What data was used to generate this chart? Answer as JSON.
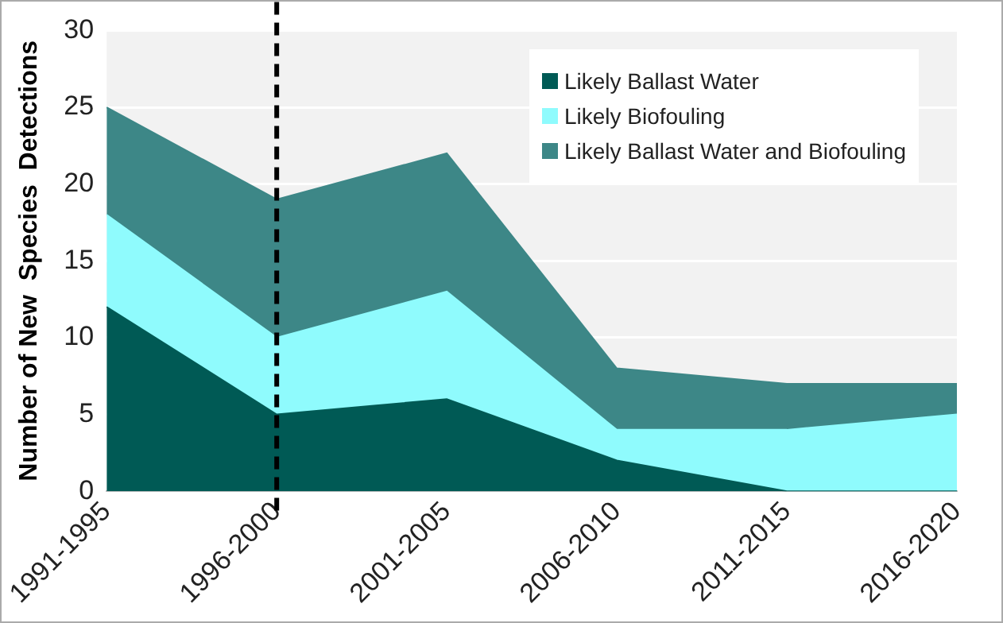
{
  "chart_data": {
    "type": "area",
    "stacked": true,
    "ylabel": "Number of New  Species  Detections",
    "categories": [
      "1991-1995",
      "1996-2000",
      "2001-2005",
      "2006-2010",
      "2011-2015",
      "2016-2020"
    ],
    "series": [
      {
        "name": "Likely Ballast Water",
        "color": "#005a55",
        "values": [
          12,
          5,
          6,
          2,
          0,
          0
        ]
      },
      {
        "name": "Likely Biofouling",
        "color": "#8ffbfd",
        "values": [
          6,
          5,
          7,
          2,
          4,
          5
        ]
      },
      {
        "name": "Likely Ballast Water and Biofouling",
        "color": "#3d8787",
        "values": [
          7,
          9,
          9,
          4,
          3,
          2
        ]
      }
    ],
    "ylim": [
      0,
      30
    ],
    "yticks": [
      0,
      5,
      10,
      15,
      20,
      25,
      30
    ],
    "grid": "y",
    "legend": "top right",
    "ref_lines": [
      {
        "axis": "x",
        "value": "1996-2000",
        "color": "#000000",
        "line_style": "dashed"
      }
    ]
  }
}
